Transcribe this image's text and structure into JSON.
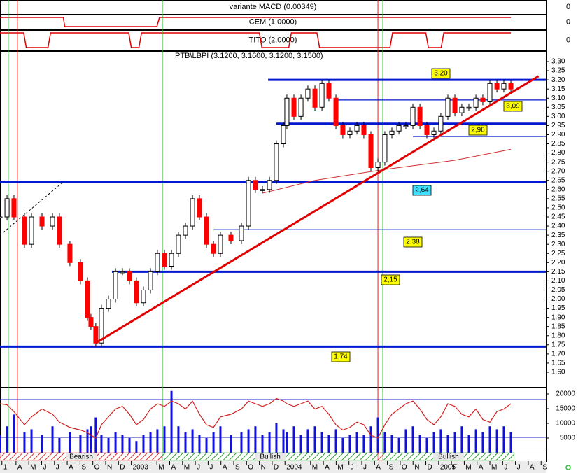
{
  "chart_data": {
    "type": "candlestick",
    "title": "PTB\\LBPI (3.1200, 3.1600, 3.1200, 3.1500)",
    "xlim": [
      1.75,
      44.37
    ],
    "xticks": [
      {
        "value": 1.9,
        "label": "1"
      },
      {
        "value": 3,
        "label": "A"
      },
      {
        "value": 4,
        "label": "M"
      },
      {
        "value": 5,
        "label": "J"
      },
      {
        "value": 6,
        "label": "J"
      },
      {
        "value": 7,
        "label": "A"
      },
      {
        "value": 8,
        "label": "S"
      },
      {
        "value": 9,
        "label": "O"
      },
      {
        "value": 10,
        "label": "N"
      },
      {
        "value": 11,
        "label": "D"
      },
      {
        "value": 12,
        "label": "2003"
      },
      {
        "value": 14,
        "label": "M"
      },
      {
        "value": 15,
        "label": "A"
      },
      {
        "value": 16,
        "label": "M"
      },
      {
        "value": 17,
        "label": "J"
      },
      {
        "value": 18,
        "label": "J"
      },
      {
        "value": 19,
        "label": "A"
      },
      {
        "value": 20,
        "label": "S"
      },
      {
        "value": 21,
        "label": "O"
      },
      {
        "value": 22,
        "label": "N"
      },
      {
        "value": 23,
        "label": "D"
      },
      {
        "value": 24,
        "label": "2004"
      },
      {
        "value": 26,
        "label": "M"
      },
      {
        "value": 27,
        "label": "A"
      },
      {
        "value": 28,
        "label": "M"
      },
      {
        "value": 29,
        "label": "J"
      },
      {
        "value": 30,
        "label": "J"
      },
      {
        "value": 31,
        "label": "A"
      },
      {
        "value": 32,
        "label": "S"
      },
      {
        "value": 33,
        "label": "O"
      },
      {
        "value": 34,
        "label": "N"
      },
      {
        "value": 35,
        "label": "D"
      },
      {
        "value": 36,
        "label": "2005"
      },
      {
        "value": 37,
        "label": "F"
      },
      {
        "value": 38,
        "label": "M"
      },
      {
        "value": 39,
        "label": "A"
      },
      {
        "value": 40,
        "label": "M"
      },
      {
        "value": 41,
        "label": "J"
      },
      {
        "value": 42,
        "label": "J"
      },
      {
        "value": 43,
        "label": "A"
      },
      {
        "value": 44,
        "label": "S"
      }
    ],
    "ylim": [
      1.6,
      3.3
    ],
    "yticks": [
      {
        "value": 3.3,
        "label": "3.30"
      },
      {
        "value": 3.25,
        "label": "3.25"
      },
      {
        "value": 3.2,
        "label": "3.20"
      },
      {
        "value": 3.15,
        "label": "3.15"
      },
      {
        "value": 3.1,
        "label": "3.10"
      },
      {
        "value": 3.05,
        "label": "3.05"
      },
      {
        "value": 3.0,
        "label": "3.00"
      },
      {
        "value": 2.95,
        "label": "2.95"
      },
      {
        "value": 2.9,
        "label": "2.90"
      },
      {
        "value": 2.85,
        "label": "2.85"
      },
      {
        "value": 2.8,
        "label": "2.80"
      },
      {
        "value": 2.75,
        "label": "2.75"
      },
      {
        "value": 2.7,
        "label": "2.70"
      },
      {
        "value": 2.65,
        "label": "2.65"
      },
      {
        "value": 2.6,
        "label": "2.60"
      },
      {
        "value": 2.55,
        "label": "2.55"
      },
      {
        "value": 2.5,
        "label": "2.50"
      },
      {
        "value": 2.45,
        "label": "2.45"
      },
      {
        "value": 2.4,
        "label": "2.40"
      },
      {
        "value": 2.35,
        "label": "2.35"
      },
      {
        "value": 2.3,
        "label": "2.30"
      },
      {
        "value": 2.25,
        "label": "2.25"
      },
      {
        "value": 2.2,
        "label": "2.20"
      },
      {
        "value": 2.15,
        "label": "2.15"
      },
      {
        "value": 2.1,
        "label": "2.10"
      },
      {
        "value": 2.05,
        "label": "2.05"
      },
      {
        "value": 2.0,
        "label": "2.00"
      },
      {
        "value": 1.95,
        "label": "1.95"
      },
      {
        "value": 1.9,
        "label": "1.90"
      },
      {
        "value": 1.85,
        "label": "1.85"
      },
      {
        "value": 1.8,
        "label": "1.80"
      },
      {
        "value": 1.75,
        "label": "1.75"
      },
      {
        "value": 1.7,
        "label": "1.70"
      },
      {
        "value": 1.65,
        "label": "1.65"
      },
      {
        "value": 1.6,
        "label": "1.60"
      }
    ],
    "x": [
      1.75,
      2.3,
      2.84,
      3.66,
      4.21,
      5.03,
      5.85,
      6.39,
      7.21,
      8.03,
      8.58,
      8.85,
      9.23,
      9.67,
      10.22,
      10.77,
      11.31,
      11.86,
      12.4,
      12.95,
      13.5,
      14.04,
      14.59,
      15.14,
      15.68,
      16.23,
      16.78,
      17.32,
      17.87,
      18.42,
      18.96,
      19.78,
      20.6,
      21.15,
      21.69,
      22.24,
      22.79,
      23.33,
      23.88,
      24.15,
      24.7,
      25.25,
      25.79,
      26.34,
      26.89,
      27.43,
      27.98,
      28.52,
      29.07,
      29.62,
      30.16,
      30.71,
      31.26,
      31.8,
      32.35,
      32.9,
      33.44,
      33.99,
      34.54,
      35.08,
      35.63,
      36.17,
      36.72,
      37.27,
      37.81,
      38.36,
      38.91,
      39.45,
      40.0,
      40.55,
      41.09,
      41.64
    ],
    "close": [
      2.45,
      2.55,
      2.45,
      2.3,
      2.45,
      2.4,
      2.45,
      2.3,
      2.2,
      2.1,
      1.9,
      1.85,
      1.76,
      1.95,
      2.0,
      2.15,
      2.15,
      2.1,
      1.98,
      2.05,
      2.15,
      2.25,
      2.18,
      2.25,
      2.35,
      2.4,
      2.55,
      2.45,
      2.3,
      2.25,
      2.35,
      2.32,
      2.4,
      2.65,
      2.6,
      2.6,
      2.65,
      2.85,
      2.95,
      3.1,
      3.0,
      3.1,
      3.15,
      3.05,
      3.18,
      3.1,
      2.95,
      2.9,
      2.92,
      2.95,
      2.9,
      2.72,
      2.75,
      2.9,
      2.92,
      2.95,
      2.95,
      3.05,
      2.95,
      2.9,
      2.92,
      3.0,
      3.1,
      3.02,
      3.05,
      3.05,
      3.1,
      3.08,
      3.18,
      3.15,
      3.18,
      3.15
    ],
    "levels": [
      {
        "value": 3.2,
        "label": "3,20",
        "from": 22.68
      },
      {
        "value": 3.09,
        "label": "3,09",
        "from": 27.98
      },
      {
        "value": 2.96,
        "label": "2,96",
        "from": 23.33
      },
      {
        "value": 2.89,
        "from": 33.99
      },
      {
        "value": 2.64,
        "label": "2,64",
        "from": 1.75
      },
      {
        "value": 2.38,
        "label": "2,38",
        "from": 18.42
      },
      {
        "value": 2.15,
        "label": "2,15",
        "from": 10.49
      },
      {
        "value": 1.74,
        "label": "1,74",
        "from": 1.75
      }
    ],
    "trendline": {
      "x": [
        9.23,
        43.8
      ],
      "values": [
        1.76,
        3.22
      ],
      "color": "#e00000"
    },
    "dashed_line": {
      "x": [
        1.75,
        6.66
      ],
      "values": [
        2.35,
        2.64
      ]
    },
    "moving_average": {
      "x": [
        22.24,
        26.34,
        31.8,
        37.27,
        41.64
      ],
      "values": [
        2.58,
        2.65,
        2.71,
        2.76,
        2.82
      ],
      "color": "#d03030"
    },
    "vlines": {
      "green": [
        2.4,
        14.43,
        31.64
      ],
      "red": [
        3.11,
        31.26
      ]
    },
    "volume": {
      "ylim": [
        0,
        20000
      ],
      "yticks": [
        20000,
        15000,
        10000,
        5000
      ],
      "values": [
        6000,
        9000,
        13000,
        7000,
        8000,
        6000,
        9000,
        5000,
        7000,
        6000,
        8000,
        9000,
        12000,
        6000,
        5000,
        7000,
        6000,
        5000,
        4000,
        6000,
        7000,
        8000,
        9000,
        21000,
        9000,
        7000,
        8000,
        6000,
        5000,
        7000,
        9000,
        6000,
        7000,
        8000,
        9000,
        6000,
        7000,
        10000,
        8000,
        7000,
        9000,
        6000,
        8000,
        9000,
        7000,
        6000,
        8000,
        5000,
        6000,
        7000,
        6000,
        9000,
        12000,
        7000,
        6000,
        5000,
        8000,
        9000,
        6000,
        5000,
        7000,
        8000,
        6000,
        7000,
        9000,
        6000,
        8000,
        7000,
        9000,
        8000,
        9000,
        7000
      ]
    },
    "oscillator": {
      "ylim": [
        0,
        100
      ],
      "values": [
        80,
        78,
        65,
        40,
        55,
        70,
        60,
        45,
        35,
        30,
        25,
        20,
        15,
        40,
        55,
        70,
        75,
        60,
        40,
        50,
        70,
        80,
        75,
        85,
        80,
        70,
        85,
        60,
        40,
        35,
        55,
        60,
        70,
        85,
        80,
        75,
        80,
        90,
        85,
        80,
        75,
        80,
        85,
        70,
        75,
        60,
        40,
        30,
        35,
        45,
        40,
        20,
        15,
        40,
        60,
        70,
        80,
        85,
        70,
        50,
        40,
        55,
        80,
        75,
        60,
        55,
        70,
        50,
        45,
        65,
        70,
        80
      ]
    },
    "panels": [
      {
        "title": "variante MACD (0.00349)",
        "tick": "0"
      },
      {
        "title": "CEM (1.0000)",
        "tick": "0",
        "x": [
          1.75,
          6.7,
          6.8,
          14.0,
          14.2,
          41.64
        ],
        "values": [
          1,
          1,
          0,
          0,
          1,
          1
        ]
      },
      {
        "title": "TITO (2.0000)",
        "tick": "0",
        "x": [
          1.75,
          3.6,
          3.8,
          5.5,
          5.7,
          11.8,
          12.0,
          12.6,
          12.8,
          22.0,
          22.2,
          24.3,
          24.5,
          26.5,
          26.7,
          32.2,
          32.4,
          35.0,
          35.2,
          36.2,
          36.4,
          41.64
        ],
        "values": [
          1,
          1,
          0,
          0,
          1,
          1,
          0,
          0,
          1,
          1,
          0,
          0,
          1,
          1,
          0,
          0,
          1,
          1,
          0,
          0,
          1,
          1
        ]
      }
    ],
    "regimes": [
      {
        "label": "Bearish",
        "from": 1.75,
        "to": 14.43,
        "color": "#e03030"
      },
      {
        "label": "Bullish",
        "from": 14.43,
        "to": 31.26,
        "color": "#30a030"
      },
      {
        "from": 31.26,
        "to": 31.64,
        "color": "#e03030"
      },
      {
        "label": "Bullish",
        "from": 31.64,
        "to": 41.9,
        "color": "#30a030"
      }
    ]
  }
}
